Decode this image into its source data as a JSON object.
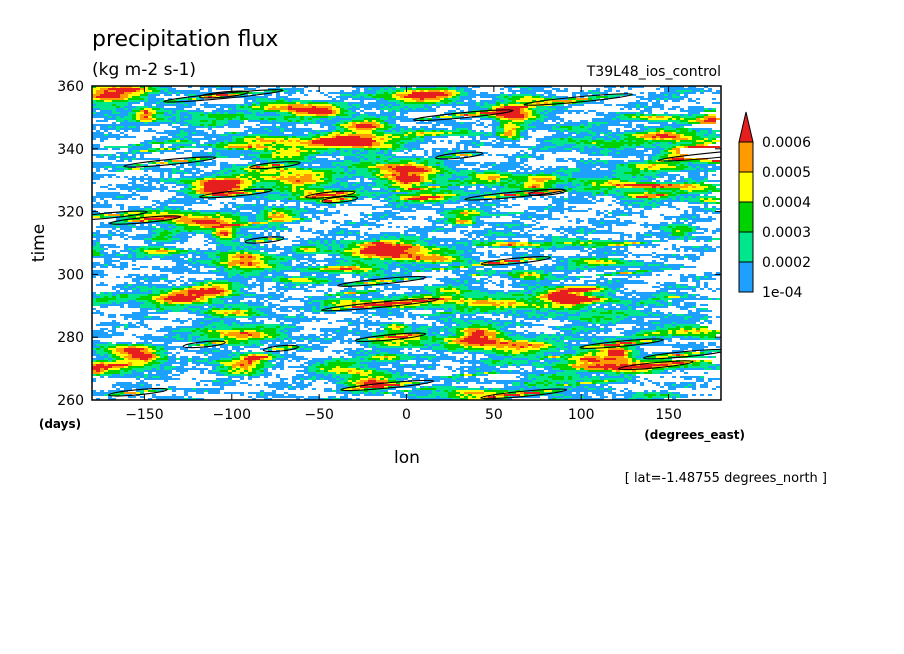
{
  "chart_data": {
    "type": "heatmap",
    "title": "precipitation flux",
    "units": "(kg m-2 s-1)",
    "experiment": "T39L48_ios_control",
    "xlabel": "lon",
    "ylabel": "time",
    "x_units": "(degrees_east)",
    "y_units": "(days)",
    "xlim": [
      -180,
      180
    ],
    "ylim": [
      260,
      360
    ],
    "x_ticks": [
      -150,
      -100,
      -50,
      0,
      50,
      100,
      150
    ],
    "y_ticks": [
      260,
      280,
      300,
      320,
      340,
      360
    ],
    "slice_note": "[ lat=-1.48755 degrees_north ]",
    "colorbar": {
      "levels": [
        0.0001,
        0.0002,
        0.0003,
        0.0004,
        0.0005,
        0.0006
      ],
      "labels": [
        "1e-04",
        "0.0002",
        "0.0003",
        "0.0004",
        "0.0005",
        "0.0006"
      ],
      "colors": [
        "#ffffff",
        "#1ea0ff",
        "#00e68c",
        "#00d200",
        "#ffff00",
        "#ff9b00",
        "#e61e1e"
      ],
      "extend": "max"
    },
    "contour_line_threshold": 0.0006,
    "field": {
      "description": "eastward-propagating precipitation streaks along the equator",
      "background_level": 0.00015,
      "streak_speed_deg_per_day": 19
    }
  }
}
